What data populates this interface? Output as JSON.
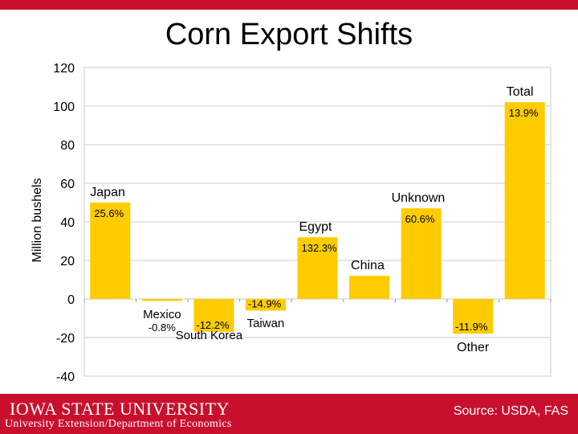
{
  "title": "Corn Export Shifts",
  "footer": {
    "logo_text": "IOWA STATE UNIVERSITY",
    "subtitle": "University Extension/Department of Economics",
    "source": "Source: USDA, FAS"
  },
  "colors": {
    "bar": "#ffcc00",
    "brand": "#c8102e",
    "grid": "#cccccc"
  },
  "chart_data": {
    "type": "bar",
    "title": "Corn Export Shifts",
    "ylabel": "Million bushels",
    "xlabel": "",
    "ylim": [
      -40,
      120
    ],
    "yticks": [
      -40,
      -20,
      0,
      20,
      40,
      60,
      80,
      100,
      120
    ],
    "grid": true,
    "categories": [
      "Japan",
      "Mexico",
      "South Korea",
      "Taiwan",
      "Egypt",
      "China",
      "Unknown",
      "Other",
      "Total"
    ],
    "values": [
      50,
      -1,
      -17,
      -6,
      32,
      12,
      47,
      -18,
      102
    ],
    "percent_labels": [
      "25.6%",
      "-0.8%",
      "-12.2%",
      "-14.9%",
      "132.3%",
      "",
      "60.6%",
      "-11.9%",
      "13.9%"
    ]
  }
}
